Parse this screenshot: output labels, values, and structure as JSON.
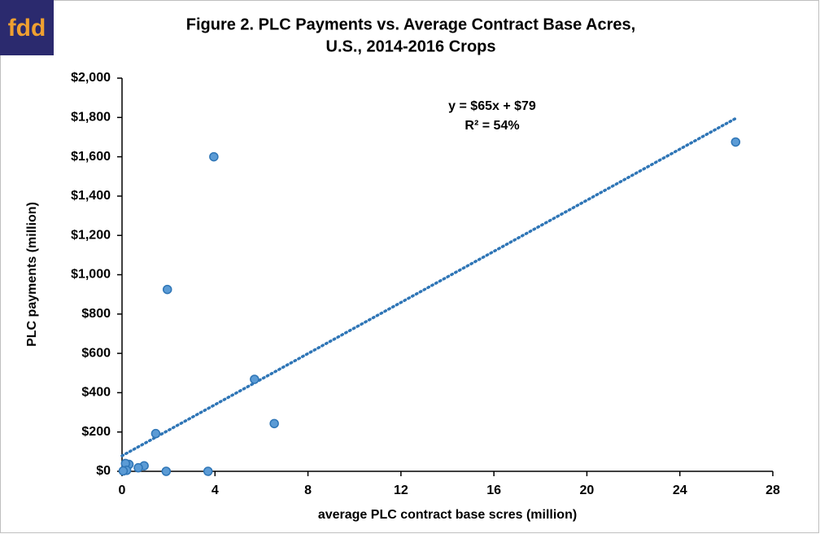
{
  "logo": "fdd",
  "chart_data": {
    "type": "scatter",
    "title": [
      "Figure 2. PLC Payments  vs. Average Contract Base Acres,",
      "U.S., 2014-2016 Crops"
    ],
    "x_label": "average PLC contract base scres (million)",
    "y_label": "PLC payments (million)",
    "annotation": [
      "y = $65x + $79",
      "R² = 54%"
    ],
    "x": [
      26.4,
      3.95,
      1.95,
      5.7,
      6.55,
      1.45,
      0.95,
      0.7,
      0.3,
      0.15,
      0.2,
      0.05,
      1.9,
      3.7
    ],
    "values": [
      1675,
      1600,
      925,
      468,
      243,
      192,
      28,
      18,
      35,
      40,
      5,
      2,
      0,
      0
    ],
    "color": "#5b9bd5",
    "edge_color": "#2e75b6",
    "trendline": {
      "slope": 65,
      "intercept": 79,
      "x": [
        0,
        26.4
      ],
      "color": "#2e75b6"
    },
    "xlim": [
      0,
      28
    ],
    "xticks": [
      0,
      4,
      8,
      12,
      16,
      20,
      24,
      28
    ],
    "ylim": [
      0,
      2000
    ],
    "yticks": [
      {
        "value": 0,
        "label": "$0"
      },
      {
        "value": 200,
        "label": "$200"
      },
      {
        "value": 400,
        "label": "$400"
      },
      {
        "value": 600,
        "label": "$600"
      },
      {
        "value": 800,
        "label": "$800"
      },
      {
        "value": 1000,
        "label": "$1,000"
      },
      {
        "value": 1200,
        "label": "$1,200"
      },
      {
        "value": 1400,
        "label": "$1,400"
      },
      {
        "value": 1600,
        "label": "$1,600"
      },
      {
        "value": 1800,
        "label": "$1,800"
      },
      {
        "value": 2000,
        "label": "$2,000"
      }
    ],
    "grid": false
  }
}
